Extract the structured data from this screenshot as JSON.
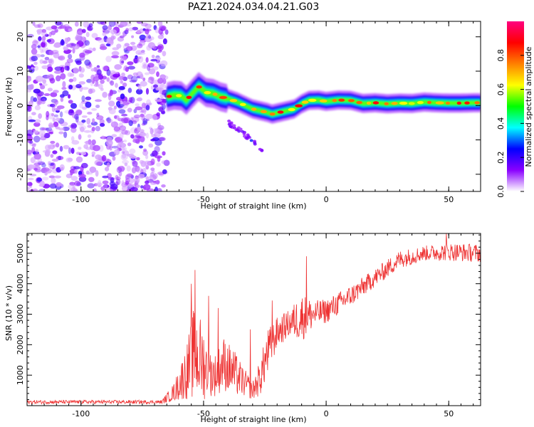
{
  "title": "PAZ1.2024.034.04.21.G03",
  "chart_data": [
    {
      "type": "heatmap",
      "xlabel": "Height of straight line (km)",
      "ylabel": "Frequency (Hz)",
      "xlim": [
        -122,
        63
      ],
      "ylim": [
        -25,
        24.5
      ],
      "xticks": [
        -100,
        -50,
        0,
        50
      ],
      "yticks": [
        -20,
        -10,
        0,
        10,
        20
      ],
      "noise_region_x": [
        -122,
        -65
      ],
      "ridge": {
        "x": [
          -65,
          -62,
          -59,
          -57,
          -55,
          -52,
          -49,
          -46,
          -43,
          -40,
          -36,
          -33,
          -30,
          -27,
          -24,
          -22,
          -19,
          -16,
          -13,
          -10,
          -7,
          -3,
          0,
          5,
          10,
          15,
          20,
          25,
          30,
          35,
          40,
          45,
          50,
          55,
          60,
          63
        ],
        "freq": [
          2.5,
          3,
          2.8,
          1.5,
          3.2,
          5.5,
          3.8,
          3.5,
          2.5,
          2,
          1,
          0,
          -1,
          -1.5,
          -2,
          -2.5,
          -2,
          -1.5,
          -1,
          0.5,
          1.5,
          1.6,
          1.2,
          1.6,
          1.5,
          0.6,
          0.8,
          0.5,
          0.7,
          0.6,
          1,
          0.8,
          0.7,
          0.7,
          0.8,
          0.8
        ]
      },
      "secondary_feature": {
        "x": [
          -40,
          -34,
          -29,
          -26
        ],
        "freq": [
          -5,
          -8,
          -11,
          -13.5
        ]
      },
      "colorbar": {
        "label": "Normalized spectral amplitude",
        "range": [
          0,
          1
        ],
        "ticks": [
          "0.0",
          "0.2",
          "0.4",
          "0.6",
          "0.8"
        ],
        "tick_values": [
          0,
          0.2,
          0.4,
          0.6,
          0.8
        ],
        "colors": [
          "#ffffff",
          "#8a00ff",
          "#0000ff",
          "#00ffff",
          "#00ff00",
          "#ffff00",
          "#ff8000",
          "#ff0000",
          "#ff0080"
        ]
      }
    },
    {
      "type": "line",
      "xlabel": "Height of straight line (km)",
      "ylabel": "SNR (10 * v/v)",
      "xlim": [
        -122,
        63
      ],
      "ylim": [
        0,
        5650
      ],
      "xticks": [
        -100,
        -50,
        0,
        50
      ],
      "yticks": [
        1000,
        2000,
        3000,
        4000,
        5000
      ],
      "color": "#ee3333",
      "envelope": {
        "x": [
          -122,
          -100,
          -80,
          -67,
          -62,
          -57,
          -54,
          -51,
          -48,
          -45,
          -42,
          -38,
          -34,
          -30,
          -27,
          -24,
          -20,
          -15,
          -10,
          -5,
          0,
          10,
          20,
          30,
          40,
          50,
          63
        ],
        "mean": [
          120,
          120,
          120,
          120,
          450,
          1100,
          1700,
          1500,
          1100,
          1000,
          1400,
          1100,
          800,
          500,
          900,
          1700,
          2400,
          2700,
          2900,
          3000,
          3100,
          3600,
          4200,
          4800,
          5000,
          5050,
          5000
        ],
        "spread": [
          60,
          60,
          60,
          60,
          300,
          900,
          1500,
          1400,
          800,
          700,
          900,
          800,
          500,
          300,
          600,
          800,
          500,
          450,
          800,
          450,
          400,
          350,
          300,
          300,
          250,
          300,
          300
        ]
      },
      "peaks": [
        {
          "x": -55,
          "y": 4000
        },
        {
          "x": -53.5,
          "y": 4450
        },
        {
          "x": -48,
          "y": 3600
        },
        {
          "x": -44,
          "y": 3200
        },
        {
          "x": -31,
          "y": 2500
        },
        {
          "x": -22,
          "y": 3450
        },
        {
          "x": -8,
          "y": 4900
        },
        {
          "x": 49,
          "y": 5650
        }
      ],
      "n_points": 1100
    }
  ]
}
